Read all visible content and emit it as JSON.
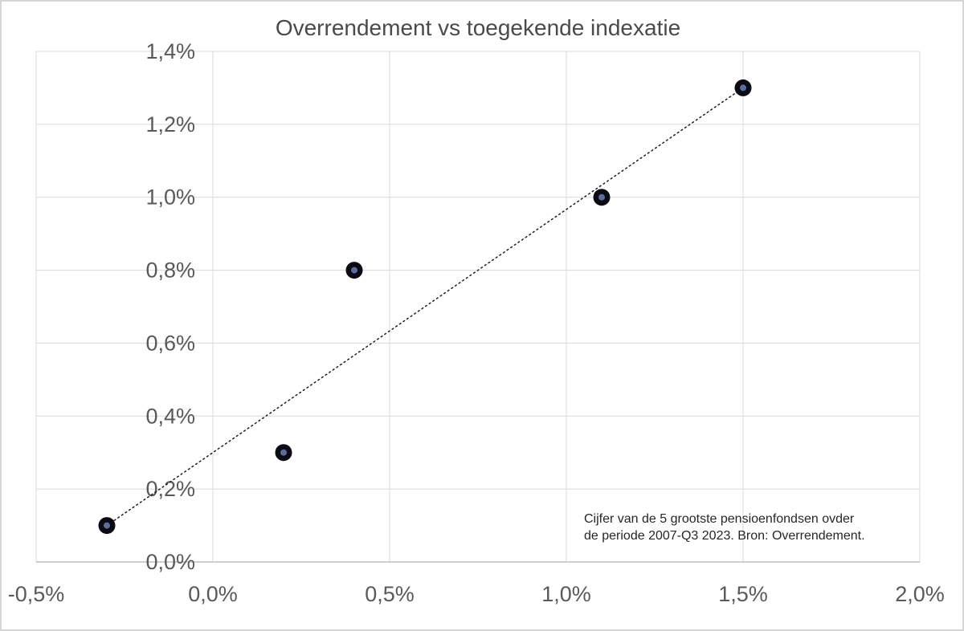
{
  "chart_data": {
    "type": "scatter",
    "title": "Overrendement vs toegekende indexatie",
    "xlabel": "",
    "ylabel": "",
    "xlim": [
      -0.5,
      2.0
    ],
    "ylim": [
      0.0,
      1.4
    ],
    "grid": true,
    "legend": "none",
    "x_ticks": {
      "values": [
        -0.5,
        0.0,
        0.5,
        1.0,
        1.5,
        2.0
      ],
      "labels": [
        "-0,5%",
        "0,0%",
        "0,5%",
        "1,0%",
        "1,5%",
        "2,0%"
      ]
    },
    "y_ticks": {
      "values": [
        0.0,
        0.2,
        0.4,
        0.6,
        0.8,
        1.0,
        1.2,
        1.4
      ],
      "labels": [
        "0,0%",
        "0,2%",
        "0,4%",
        "0,6%",
        "0,8%",
        "1,0%",
        "1,2%",
        "1,4%"
      ]
    },
    "points": [
      {
        "x": -0.3,
        "y": 0.1
      },
      {
        "x": 0.2,
        "y": 0.3
      },
      {
        "x": 0.4,
        "y": 0.8
      },
      {
        "x": 1.1,
        "y": 1.0
      },
      {
        "x": 1.5,
        "y": 1.3
      }
    ],
    "trendline": {
      "style": "dotted",
      "x1": -0.3,
      "y1": 0.1,
      "x2": 1.5,
      "y2": 1.3
    },
    "annotation_lines": [
      "Cijfer van de 5 grootste pensioenfondsen ovder",
      "de periode 2007-Q3 2023. Bron: Overrendement."
    ],
    "colors": {
      "marker_outer": "#0b0b14",
      "marker_inner": "#5e6b9d",
      "trendline": "#1c1c26",
      "gridline": "#d9d9d9",
      "axis_line": "#bfbfbf",
      "tick_label": "#595959",
      "title": "#4a4a4a",
      "annotation_text": "#262626",
      "background": "#ffffff"
    }
  }
}
